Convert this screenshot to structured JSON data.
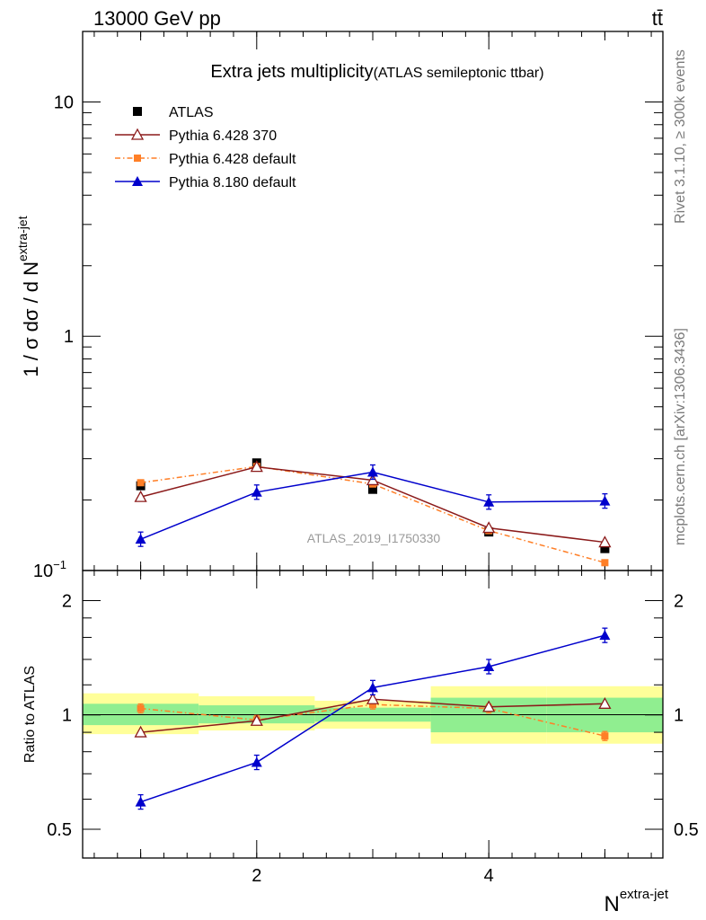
{
  "header": {
    "energy_label": "13000 GeV pp",
    "process_label": "tt̄"
  },
  "side_labels": {
    "rivet": "Rivet 3.1.10, ≥ 300k events",
    "source": "mcplots.cern.ch [arXiv:1306.3436]"
  },
  "chart_data": [
    {
      "type": "line",
      "title": "Extra jets multiplicity",
      "subtitle": "(ATLAS semileptonic ttbar)",
      "ylabel_main": "1 / σ dσ / d N",
      "ylabel_sup": "extra-jet",
      "xlabel_main": "N",
      "xlabel_sup": "extra-jet",
      "watermark": "ATLAS_2019_I1750330",
      "yscale": "log",
      "ylim": [
        0.1,
        20
      ],
      "xlim": [
        0.5,
        5.5
      ],
      "ytick_labels": [
        "10",
        "1",
        "10"
      ],
      "ytick_exp": "−1",
      "legend_position": "top-left",
      "x": [
        1,
        2,
        3,
        4,
        5
      ],
      "series": [
        {
          "name": "ATLAS",
          "color": "#000000",
          "marker": "square",
          "values": [
            0.23,
            0.288,
            0.222,
            0.146,
            0.124
          ]
        },
        {
          "name": "Pythia 6.428 370",
          "color": "#8b1a1a",
          "marker": "open-triangle",
          "values": [
            0.206,
            0.277,
            0.243,
            0.152,
            0.132
          ]
        },
        {
          "name": "Pythia 6.428 default",
          "color": "#ff7f27",
          "marker": "small-square",
          "dashed": true,
          "values": [
            0.237,
            0.278,
            0.234,
            0.148,
            0.108
          ]
        },
        {
          "name": "Pythia 8.180 default",
          "color": "#0000cc",
          "marker": "triangle",
          "values": [
            0.136,
            0.216,
            0.263,
            0.196,
            0.198
          ]
        }
      ]
    },
    {
      "type": "line",
      "ylabel": "Ratio to ATLAS",
      "yscale": "log",
      "ylim": [
        0.42,
        2.4
      ],
      "ytick_labels": [
        "2",
        "1",
        "0.5"
      ],
      "xtick_labels": [
        "2",
        "4"
      ],
      "x": [
        1,
        2,
        3,
        4,
        5
      ],
      "uncertainty_bands": [
        {
          "x_range": [
            0.5,
            1.5
          ],
          "inner": [
            0.94,
            1.07
          ],
          "outer": [
            0.89,
            1.14
          ]
        },
        {
          "x_range": [
            1.5,
            2.5
          ],
          "inner": [
            0.95,
            1.06
          ],
          "outer": [
            0.91,
            1.12
          ]
        },
        {
          "x_range": [
            2.5,
            3.5
          ],
          "inner": [
            0.96,
            1.045
          ],
          "outer": [
            0.92,
            1.09
          ]
        },
        {
          "x_range": [
            3.5,
            4.5
          ],
          "inner": [
            0.9,
            1.11
          ],
          "outer": [
            0.84,
            1.19
          ]
        },
        {
          "x_range": [
            4.5,
            5.5
          ],
          "inner": [
            0.9,
            1.11
          ],
          "outer": [
            0.84,
            1.19
          ]
        }
      ],
      "series": [
        {
          "name": "Pythia 6.428 370",
          "color": "#8b1a1a",
          "marker": "open-triangle",
          "values": [
            0.9,
            0.965,
            1.1,
            1.05,
            1.07
          ]
        },
        {
          "name": "Pythia 6.428 default",
          "color": "#ff7f27",
          "marker": "small-square",
          "dashed": true,
          "values": [
            1.04,
            0.97,
            1.065,
            1.04,
            0.88
          ]
        },
        {
          "name": "Pythia 8.180 default",
          "color": "#0000cc",
          "marker": "triangle",
          "values": [
            0.59,
            0.75,
            1.18,
            1.34,
            1.62
          ]
        }
      ]
    }
  ]
}
